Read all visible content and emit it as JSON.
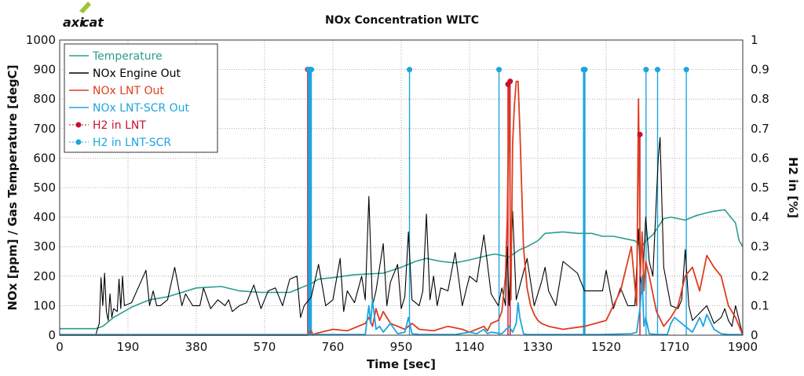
{
  "logo": {
    "text_part1": "axi",
    "text_part2": "cat",
    "colors": {
      "text": "#444444",
      "accent": "#9cc43c"
    }
  },
  "chart_data": {
    "type": "line",
    "title": "NOx Concentration WLTC",
    "xlabel": "Time [sec]",
    "ylabel_left": "NOx [ppm] / Gas Temperature [degC]",
    "ylabel_right": "H2 in [%]",
    "xlim": [
      0,
      1900
    ],
    "ylim_left": [
      0,
      1000
    ],
    "ylim_right": [
      0,
      1
    ],
    "x_ticks": [
      "0",
      "190",
      "380",
      "570",
      "760",
      "950",
      "1140",
      "1330",
      "1520",
      "1710",
      "1900"
    ],
    "y_ticks_left": [
      "0",
      "100",
      "200",
      "300",
      "400",
      "500",
      "600",
      "700",
      "800",
      "900",
      "1000"
    ],
    "y_ticks_right": [
      "0",
      "0.1",
      "0.2",
      "0.3",
      "0.4",
      "0.5",
      "0.6",
      "0.7",
      "0.8",
      "0.9",
      "1"
    ],
    "grid": true,
    "legend_position": "top-left",
    "series": [
      {
        "name": "Temperature",
        "axis": "left",
        "color": "#2a9d8f",
        "width": 1.6,
        "x": [
          0,
          100,
          120,
          150,
          200,
          250,
          300,
          380,
          450,
          500,
          560,
          640,
          660,
          700,
          720,
          760,
          820,
          900,
          950,
          990,
          1020,
          1060,
          1100,
          1140,
          1190,
          1210,
          1250,
          1280,
          1300,
          1330,
          1350,
          1400,
          1440,
          1480,
          1510,
          1540,
          1580,
          1600,
          1620,
          1630,
          1650,
          1680,
          1700,
          1740,
          1770,
          1800,
          1820,
          1850,
          1880,
          1890,
          1900
        ],
        "y": [
          22,
          22,
          30,
          60,
          95,
          120,
          130,
          160,
          165,
          150,
          145,
          145,
          155,
          175,
          190,
          195,
          205,
          210,
          230,
          250,
          260,
          250,
          245,
          255,
          270,
          275,
          265,
          290,
          300,
          320,
          345,
          350,
          345,
          345,
          335,
          335,
          325,
          320,
          300,
          320,
          340,
          395,
          400,
          390,
          405,
          415,
          420,
          425,
          380,
          320,
          300
        ]
      },
      {
        "name": "NOx Engine Out",
        "axis": "left",
        "color": "#000000",
        "width": 1.1,
        "x": [
          0,
          100,
          110,
          115,
          120,
          125,
          130,
          135,
          140,
          145,
          150,
          160,
          165,
          170,
          175,
          180,
          200,
          240,
          250,
          260,
          270,
          280,
          300,
          320,
          340,
          350,
          370,
          390,
          400,
          420,
          440,
          460,
          470,
          480,
          500,
          520,
          540,
          560,
          580,
          600,
          620,
          640,
          660,
          670,
          680,
          700,
          720,
          740,
          760,
          780,
          790,
          800,
          820,
          840,
          850,
          860,
          870,
          880,
          900,
          910,
          920,
          940,
          950,
          960,
          970,
          980,
          1000,
          1010,
          1020,
          1030,
          1040,
          1050,
          1060,
          1080,
          1100,
          1120,
          1140,
          1160,
          1180,
          1200,
          1220,
          1230,
          1240,
          1245,
          1250,
          1260,
          1270,
          1300,
          1320,
          1340,
          1350,
          1360,
          1380,
          1400,
          1440,
          1460,
          1480,
          1500,
          1510,
          1520,
          1540,
          1560,
          1580,
          1600,
          1610,
          1615,
          1620,
          1630,
          1640,
          1650,
          1660,
          1665,
          1670,
          1680,
          1700,
          1720,
          1730,
          1740,
          1750,
          1760,
          1800,
          1820,
          1840,
          1850,
          1860,
          1870,
          1880,
          1900
        ],
        "y": [
          0,
          0,
          40,
          195,
          100,
          210,
          80,
          50,
          140,
          60,
          90,
          80,
          190,
          90,
          200,
          100,
          110,
          220,
          100,
          150,
          100,
          100,
          120,
          230,
          100,
          140,
          100,
          100,
          160,
          90,
          120,
          100,
          120,
          80,
          100,
          110,
          170,
          90,
          150,
          160,
          100,
          190,
          200,
          60,
          100,
          130,
          240,
          100,
          120,
          260,
          80,
          150,
          110,
          200,
          120,
          470,
          100,
          150,
          310,
          100,
          180,
          240,
          90,
          130,
          350,
          120,
          100,
          150,
          410,
          120,
          200,
          100,
          160,
          150,
          280,
          100,
          200,
          180,
          340,
          140,
          100,
          160,
          100,
          300,
          100,
          420,
          120,
          260,
          100,
          180,
          230,
          150,
          100,
          250,
          210,
          150,
          150,
          150,
          150,
          220,
          90,
          160,
          100,
          100,
          360,
          200,
          140,
          400,
          250,
          200,
          470,
          600,
          670,
          230,
          100,
          90,
          120,
          290,
          100,
          50,
          100,
          40,
          60,
          90,
          50,
          30,
          100,
          0
        ]
      },
      {
        "name": "NOx LNT Out",
        "axis": "left",
        "color": "#e03c1f",
        "width": 1.8,
        "x": [
          0,
          690,
          700,
          705,
          710,
          760,
          800,
          850,
          860,
          870,
          880,
          890,
          900,
          920,
          940,
          960,
          980,
          1000,
          1040,
          1080,
          1120,
          1140,
          1160,
          1180,
          1190,
          1200,
          1220,
          1230,
          1240,
          1245,
          1250,
          1255,
          1260,
          1265,
          1270,
          1275,
          1280,
          1285,
          1290,
          1300,
          1310,
          1320,
          1330,
          1340,
          1360,
          1400,
          1460,
          1520,
          1560,
          1590,
          1605,
          1610,
          1615,
          1620,
          1625,
          1630,
          1640,
          1660,
          1680,
          1700,
          1720,
          1740,
          1760,
          1780,
          1800,
          1820,
          1840,
          1860,
          1880,
          1900
        ],
        "y": [
          0,
          0,
          15,
          0,
          5,
          20,
          15,
          40,
          60,
          30,
          90,
          50,
          80,
          40,
          30,
          20,
          40,
          20,
          15,
          30,
          20,
          10,
          20,
          30,
          15,
          40,
          50,
          80,
          200,
          400,
          840,
          120,
          650,
          780,
          860,
          860,
          700,
          500,
          300,
          160,
          100,
          70,
          50,
          40,
          30,
          20,
          30,
          50,
          150,
          300,
          100,
          800,
          200,
          350,
          150,
          250,
          200,
          80,
          30,
          60,
          100,
          200,
          230,
          150,
          270,
          230,
          200,
          100,
          60,
          0
        ]
      },
      {
        "name": "NOx LNT-SCR Out",
        "axis": "left",
        "color": "#1ea5e0",
        "width": 1.8,
        "x": [
          0,
          850,
          860,
          865,
          870,
          880,
          890,
          900,
          920,
          940,
          960,
          970,
          980,
          1000,
          1100,
          1140,
          1160,
          1180,
          1190,
          1200,
          1230,
          1250,
          1260,
          1270,
          1275,
          1280,
          1290,
          1300,
          1400,
          1500,
          1590,
          1605,
          1615,
          1620,
          1625,
          1630,
          1640,
          1660,
          1690,
          1700,
          1710,
          1740,
          1760,
          1780,
          1790,
          1800,
          1820,
          1840,
          1860,
          1900
        ],
        "y": [
          2,
          2,
          100,
          40,
          120,
          20,
          30,
          10,
          40,
          5,
          10,
          60,
          5,
          2,
          2,
          10,
          5,
          20,
          5,
          10,
          5,
          30,
          10,
          40,
          110,
          60,
          5,
          2,
          2,
          2,
          5,
          10,
          100,
          200,
          30,
          60,
          5,
          2,
          2,
          40,
          60,
          30,
          10,
          60,
          30,
          70,
          20,
          5,
          2,
          2
        ]
      }
    ],
    "h2_series": [
      {
        "name": "H2 in LNT",
        "axis": "right",
        "color": "#c8102e",
        "x": [
          690,
          1247,
          1253,
          1614
        ],
        "y": [
          0.9,
          0.85,
          0.86,
          0.68
        ]
      },
      {
        "name": "H2 in LNT-SCR",
        "axis": "right",
        "color": "#1ea5e0",
        "x": [
          692,
          694,
          696,
          698,
          700,
          973,
          1222,
          1457,
          1459,
          1461,
          1631,
          1663,
          1743
        ],
        "y": [
          0.9,
          0.9,
          0.9,
          0.9,
          0.9,
          0.9,
          0.9,
          0.9,
          0.9,
          0.9,
          0.9,
          0.9,
          0.9
        ]
      }
    ]
  }
}
